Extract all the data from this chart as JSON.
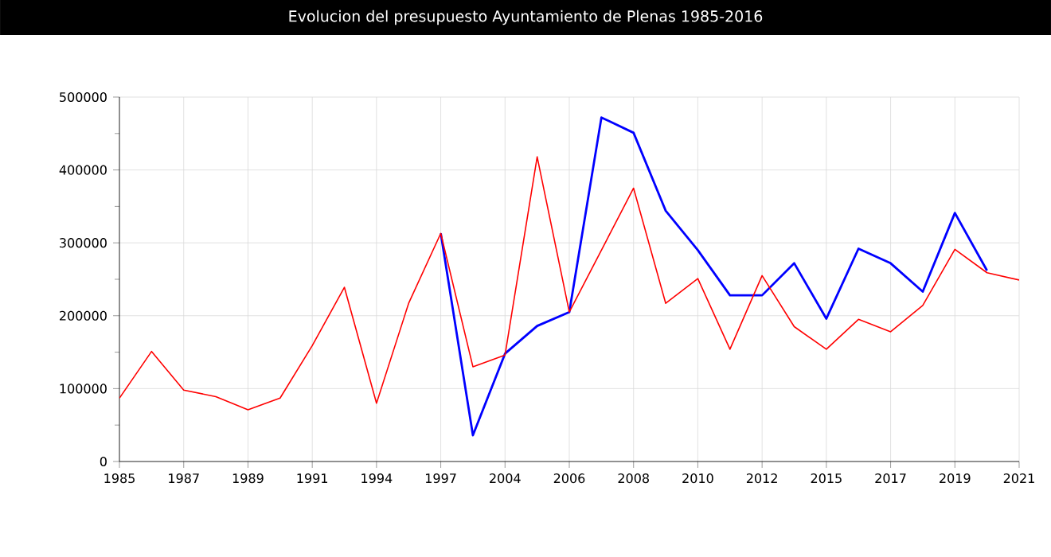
{
  "chart_data": {
    "type": "line",
    "title": "Evolucion del presupuesto Ayuntamiento de Plenas 1985-2016",
    "categories": [
      "1985",
      null,
      "1987",
      null,
      "1989",
      null,
      "1991",
      null,
      "1994",
      null,
      "1997",
      null,
      "2004",
      null,
      "2006",
      null,
      "2008",
      null,
      "2010",
      null,
      "2012",
      null,
      "2015",
      null,
      "2017",
      null,
      "2019",
      null,
      "2021"
    ],
    "series": [
      {
        "color": "#0000ff",
        "values": [
          null,
          null,
          null,
          null,
          null,
          null,
          null,
          null,
          null,
          null,
          313000,
          36000,
          148000,
          186000,
          205000,
          472000,
          451000,
          344000,
          290000,
          228000,
          228000,
          272000,
          196000,
          292000,
          272000,
          233000,
          341000,
          262000,
          null
        ]
      },
      {
        "color": "#ff0000",
        "values": [
          87000,
          151000,
          98000,
          89000,
          71000,
          87000,
          159000,
          239000,
          80000,
          217000,
          313000,
          130000,
          146000,
          418000,
          205000,
          290000,
          375000,
          217000,
          251000,
          154000,
          255000,
          185000,
          154000,
          195000,
          178000,
          214000,
          291000,
          259000,
          249000
        ]
      }
    ],
    "ylim": [
      0,
      500000
    ],
    "yticks": [
      0,
      {
        "value": 50000,
        "label": null
      },
      100000,
      {
        "value": 150000,
        "label": null
      },
      200000,
      {
        "value": 250000,
        "label": null
      },
      300000,
      {
        "value": 350000,
        "label": null
      },
      400000,
      {
        "value": 450000,
        "label": null
      },
      500000
    ],
    "grid": true,
    "marker": "none",
    "line_style": "solid"
  }
}
